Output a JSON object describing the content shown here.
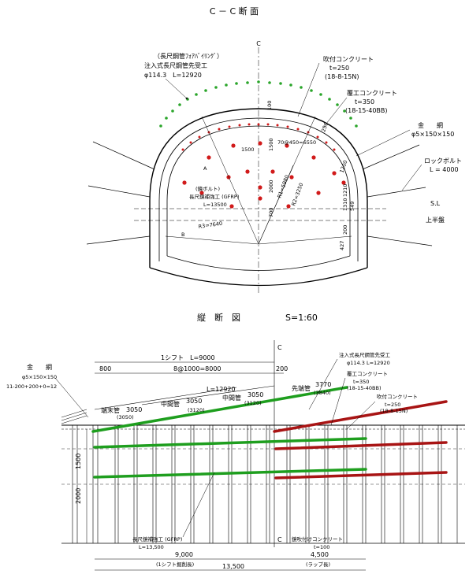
{
  "cross_section": {
    "title": "C － C 断 面",
    "center_mark": "C",
    "pipe_roof_label": "（長尺鋼管ﾌｫｱﾊﾞｲﾘﾝｸﾞ）",
    "pipe_roof_type": "注入式長尺鋼管先受工",
    "pipe_roof_spec": "φ114.3　L=12920",
    "shotcrete_label": "吹付コンクリート",
    "shotcrete_t": "t=250",
    "shotcrete_spec": "(18-8-15N)",
    "lining_label": "覆工コンクリート",
    "lining_t": "t=350",
    "lining_spec": "(18-15-40BB)",
    "mesh_label": "金　　網",
    "mesh_spec": "φ5×150×150",
    "rockbolt_label": "ロックボルト",
    "rockbolt_spec": "L = 4000",
    "sl_label": "S.L",
    "upper_bench_label": "上半盤",
    "face_bolt_label1": "(鏡ボルト)",
    "face_bolt_label2": "長尺鏡補強工 (GFRP)",
    "face_bolt_spec": "L=13500",
    "dim_100": "100",
    "dim_250": "250",
    "dim_1500a": "1500",
    "dim_1500b": "1500",
    "dim_pitch": "70@450=6550",
    "dim_r1": "R1=5980",
    "dim_r2": "R2=3250",
    "dim_2000": "2000",
    "dim_700": "700",
    "dim_1200": "1200",
    "dim_1210": "1210",
    "dim_1310": "1310",
    "dim_549": "549",
    "dim_200": "200",
    "dim_427": "427",
    "dim_r3": "R3=7640",
    "mark_a": "A",
    "mark_b": "B"
  },
  "longitudinal": {
    "title": "縦　断　図",
    "scale": "S=1:60",
    "shift_label": "1シフト　L=9000",
    "dim_800": "800",
    "dim_8x1000": "8@1000=8000",
    "dim_200": "200",
    "center_mark_top": "C",
    "center_mark_bottom": "C",
    "mesh_label": "金　　網",
    "mesh_spec": "φ5×150×150",
    "mesh_count": "11-200+200+0=12",
    "pipe_total": "L=12920",
    "end_pipe": "端末管",
    "mid_pipe_a": "中間管",
    "mid_pipe_b": "中間管",
    "lead_pipe": "先端管",
    "len_3050a": "3050",
    "len_3050b": "3050",
    "len_3050c": "3050",
    "len_3770": "3770",
    "sub_3050": "(3050)",
    "sub_3120a": "(3120)",
    "sub_3120b": "(3120)",
    "sub_3840": "(3840)",
    "pipe_roof_type": "注入式長尺鋼管先受工",
    "pipe_roof_spec": "φ114.3 L=12920",
    "lining_label": "覆工コンクリート",
    "lining_t": "t=350",
    "lining_spec": "(18-15-40BB)",
    "shotcrete_label": "吹付コンクリート",
    "shotcrete_t": "t=250",
    "shotcrete_spec": "(18-8-15N)",
    "dim_1500": "1500",
    "dim_2000": "2000",
    "face_bolt_label": "長尺鏡補強工 (GFRP)",
    "face_bolt_spec": "L=13,500",
    "face_shot_label": "鏡吹付けコンクリート",
    "face_shot_t": "t=100",
    "dim_9000": "9,000",
    "dim_9000_note": "(1シフト掘削長)",
    "dim_4500": "4,500",
    "dim_4500_note": "(ラップ長)",
    "dim_13500": "13,500"
  },
  "colors": {
    "pipe_green": "#1e9e1e",
    "pipe_red": "#a81414",
    "dot_red": "#d11a1a",
    "dot_green": "#2aa52a"
  }
}
